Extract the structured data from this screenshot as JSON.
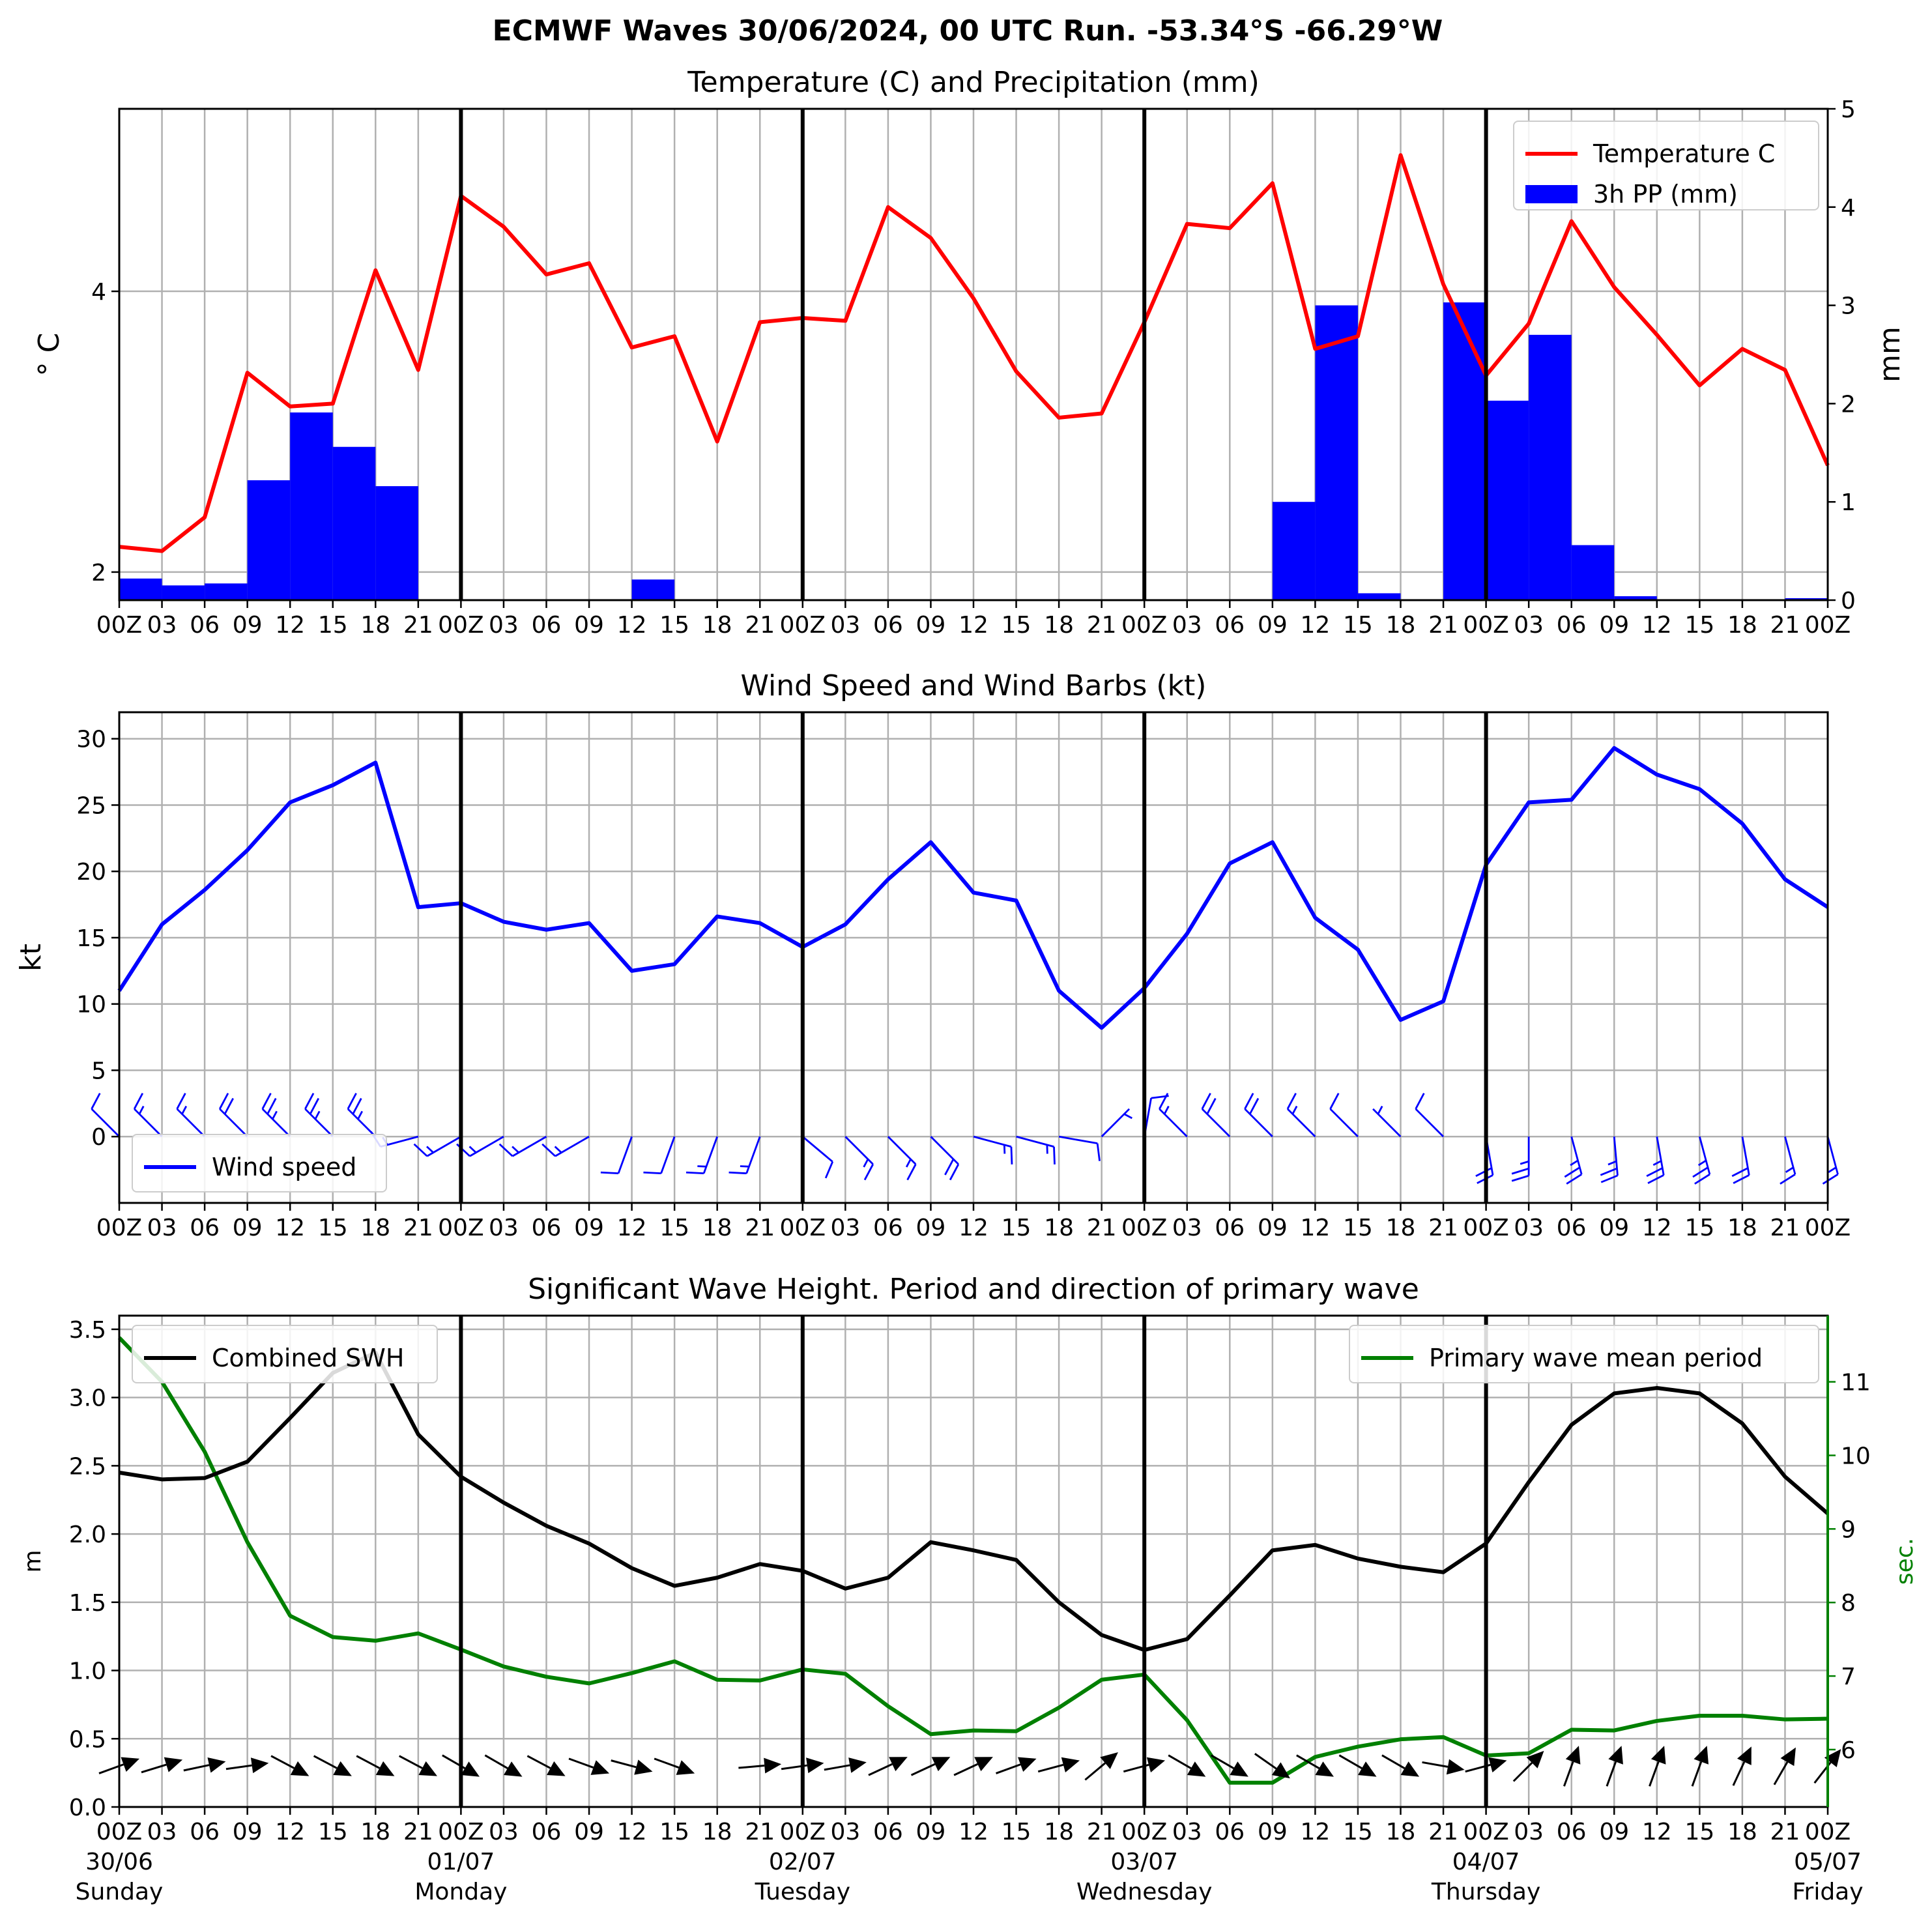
{
  "figure": {
    "suptitle": "ECMWF Waves 30/06/2024, 00 UTC Run. -53.34°S -66.29°W"
  },
  "time": {
    "hour_labels": [
      "00Z",
      "03",
      "06",
      "09",
      "12",
      "15",
      "18",
      "21",
      "00Z",
      "03",
      "06",
      "09",
      "12",
      "15",
      "18",
      "21",
      "00Z",
      "03",
      "06",
      "09",
      "12",
      "15",
      "18",
      "21",
      "00Z",
      "03",
      "06",
      "09",
      "12",
      "15",
      "18",
      "21",
      "00Z",
      "03",
      "06",
      "09",
      "12",
      "15",
      "18",
      "21",
      "00Z"
    ],
    "date_labels": [
      {
        "date": "30/06",
        "day": "Sunday"
      },
      {
        "date": "01/07",
        "day": "Monday"
      },
      {
        "date": "02/07",
        "day": "Tuesday"
      },
      {
        "date": "03/07",
        "day": "Wednesday"
      },
      {
        "date": "04/07",
        "day": "Thursday"
      },
      {
        "date": "05/07",
        "day": "Friday"
      }
    ]
  },
  "chart_data": [
    {
      "type": "line",
      "title": "Temperature (C) and Precipitation (mm)",
      "ylabel": "$^\\circ$C",
      "ylabel_display": "° C",
      "ylim": [
        1.8,
        5.3
      ],
      "yticks": [
        2,
        4
      ],
      "y2label": "mm",
      "y2lim": [
        0,
        5
      ],
      "y2ticks": [
        0,
        1,
        2,
        3,
        4,
        5
      ],
      "legend": "top-right",
      "grid": true,
      "series": [
        {
          "name": "Temperature C",
          "type": "line",
          "color": "#ff0000",
          "axis": "left",
          "values": [
            2.18,
            2.15,
            2.39,
            3.42,
            3.18,
            3.2,
            4.15,
            3.44,
            4.68,
            4.46,
            4.12,
            4.2,
            3.6,
            3.68,
            2.93,
            3.78,
            3.81,
            3.79,
            4.6,
            4.38,
            3.95,
            3.43,
            3.1,
            3.13,
            3.78,
            4.48,
            4.45,
            4.77,
            3.59,
            3.68,
            4.97,
            4.05,
            3.4,
            3.77,
            4.5,
            4.03,
            3.69,
            3.33,
            3.59,
            3.44,
            2.76
          ]
        },
        {
          "name": "3h PP (mm)",
          "type": "bar",
          "color": "#0000ff",
          "axis": "right",
          "values": [
            0.22,
            0.15,
            0.17,
            1.22,
            1.91,
            1.56,
            1.16,
            0,
            0.01,
            0,
            0,
            0,
            0.21,
            0,
            0,
            0,
            0,
            0,
            0,
            0.01,
            0,
            0,
            0,
            0,
            0,
            0,
            0.01,
            1.0,
            3.0,
            0.07,
            0,
            3.03,
            2.03,
            2.7,
            0.56,
            0.04,
            0,
            0,
            0,
            0.02
          ]
        }
      ]
    },
    {
      "type": "line",
      "title": "Wind Speed and Wind Barbs (kt)",
      "ylabel": "kt",
      "ylim": [
        -5,
        32
      ],
      "yticks": [
        0,
        5,
        10,
        15,
        20,
        25,
        30
      ],
      "legend": "bottom-left",
      "grid": true,
      "series": [
        {
          "name": "Wind speed",
          "color": "#0000ff",
          "values": [
            11.0,
            16.0,
            18.6,
            21.6,
            25.2,
            26.5,
            28.2,
            17.3,
            17.6,
            16.2,
            15.6,
            16.1,
            12.5,
            13.0,
            16.6,
            16.1,
            14.3,
            16.0,
            19.4,
            22.2,
            18.4,
            17.8,
            11.0,
            8.2,
            11.2,
            15.3,
            20.6,
            22.2,
            16.5,
            14.1,
            8.8,
            10.2,
            20.5,
            25.2,
            25.4,
            29.3,
            27.3,
            26.2,
            23.6,
            19.4,
            17.3
          ]
        }
      ],
      "wind_barbs": {
        "color": "#0000ff",
        "direction_from_deg": [
          315,
          315,
          315,
          315,
          315,
          315,
          315,
          255,
          240,
          240,
          240,
          240,
          200,
          200,
          200,
          200,
          130,
          135,
          135,
          135,
          105,
          105,
          100,
          45,
          10,
          315,
          315,
          315,
          315,
          315,
          315,
          315,
          170,
          180,
          165,
          175,
          170,
          165,
          170,
          165,
          165
        ]
      }
    },
    {
      "type": "line",
      "title": "Significant Wave Height. Period and direction of primary wave",
      "ylabel": "m",
      "ylim": [
        0,
        3.6
      ],
      "yticks": [
        0.0,
        0.5,
        1.0,
        1.5,
        2.0,
        2.5,
        3.0,
        3.5
      ],
      "y2label": "sec.",
      "y2lim": [
        5.22,
        11.9
      ],
      "y2ticks": [
        6,
        7,
        8,
        9,
        10,
        11
      ],
      "grid": true,
      "series": [
        {
          "name": "Combined SWH",
          "color": "#000000",
          "axis": "left",
          "legend": "top-left",
          "values": [
            2.45,
            2.4,
            2.41,
            2.53,
            2.85,
            3.18,
            3.33,
            2.73,
            2.42,
            2.23,
            2.06,
            1.93,
            1.75,
            1.62,
            1.68,
            1.78,
            1.73,
            1.6,
            1.68,
            1.94,
            1.88,
            1.81,
            1.5,
            1.26,
            1.15,
            1.23,
            1.55,
            1.88,
            1.92,
            1.82,
            1.76,
            1.72,
            1.93,
            2.38,
            2.8,
            3.03,
            3.07,
            3.03,
            2.81,
            2.42,
            2.15
          ]
        },
        {
          "name": "Primary wave mean period",
          "color": "#008000",
          "axis": "right",
          "legend": "top-right",
          "values": [
            11.6,
            11.0,
            10.05,
            8.82,
            7.82,
            7.53,
            7.48,
            7.58,
            7.36,
            7.13,
            6.99,
            6.9,
            7.04,
            7.2,
            6.95,
            6.94,
            7.09,
            7.03,
            6.59,
            6.21,
            6.26,
            6.25,
            6.57,
            6.95,
            7.02,
            6.4,
            5.55,
            5.55,
            5.9,
            6.04,
            6.14,
            6.17,
            5.92,
            5.95,
            6.27,
            6.26,
            6.39,
            6.46,
            6.46,
            6.41,
            6.42
          ]
        }
      ],
      "wave_arrows": {
        "color": "#000000",
        "direction_from_deg": [
          250,
          253,
          258,
          262,
          298,
          298,
          298,
          298,
          300,
          300,
          298,
          290,
          285,
          290,
          null,
          265,
          262,
          260,
          245,
          245,
          245,
          250,
          255,
          230,
          255,
          300,
          300,
          305,
          300,
          300,
          300,
          280,
          255,
          225,
          200,
          200,
          200,
          200,
          205,
          210,
          218
        ]
      }
    }
  ]
}
